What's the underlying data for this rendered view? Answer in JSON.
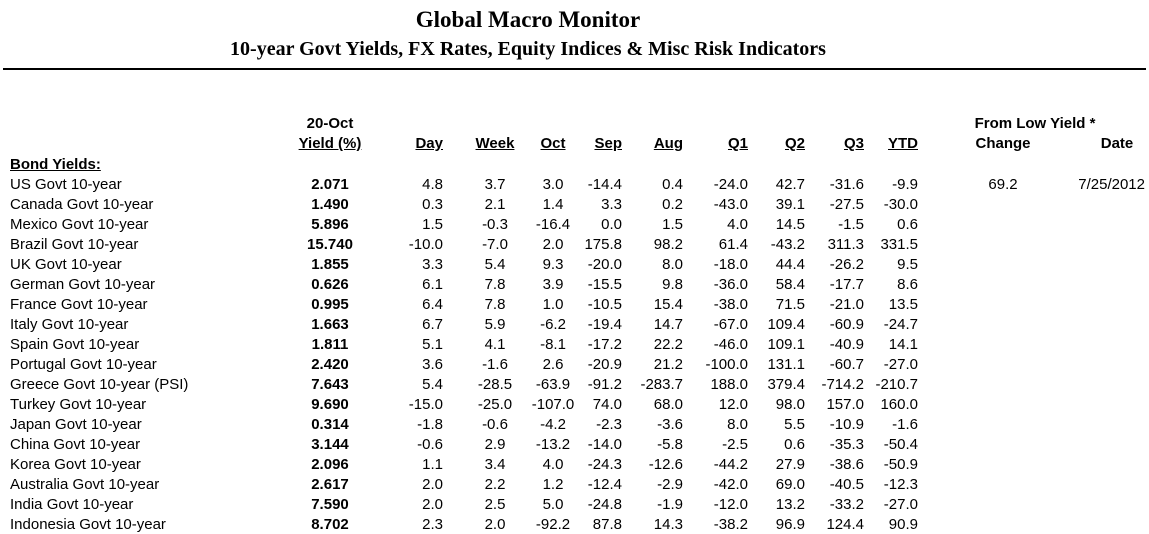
{
  "title": "Global Macro Monitor",
  "subtitle": "10-year Govt Yields, FX Rates, Equity Indices & Misc Risk Indicators",
  "table": {
    "period_label": "20-Oct",
    "from_low_label": "From Low Yield *",
    "change_label": "Change",
    "date_label": "Date",
    "section_label": "Bond Yields:",
    "columns": [
      "Yield (%)",
      "Day",
      "Week",
      "Oct",
      "Sep",
      "Aug",
      "Q1",
      "Q2",
      "Q3",
      "YTD"
    ],
    "rows": [
      {
        "name": "US Govt 10-year",
        "yield": "2.071",
        "values": [
          "4.8",
          "3.7",
          "3.0",
          "-14.4",
          "0.4",
          "-24.0",
          "42.7",
          "-31.6",
          "-9.9"
        ],
        "change": "69.2",
        "date": "7/25/2012"
      },
      {
        "name": "Canada Govt 10-year",
        "yield": "1.490",
        "values": [
          "0.3",
          "2.1",
          "1.4",
          "3.3",
          "0.2",
          "-43.0",
          "39.1",
          "-27.5",
          "-30.0"
        ],
        "change": "",
        "date": ""
      },
      {
        "name": "Mexico Govt 10-year",
        "yield": "5.896",
        "values": [
          "1.5",
          "-0.3",
          "-16.4",
          "0.0",
          "1.5",
          "4.0",
          "14.5",
          "-1.5",
          "0.6"
        ],
        "change": "",
        "date": ""
      },
      {
        "name": "Brazil Govt 10-year",
        "yield": "15.740",
        "values": [
          "-10.0",
          "-7.0",
          "2.0",
          "175.8",
          "98.2",
          "61.4",
          "-43.2",
          "311.3",
          "331.5"
        ],
        "change": "",
        "date": ""
      },
      {
        "name": "UK Govt 10-year",
        "yield": "1.855",
        "values": [
          "3.3",
          "5.4",
          "9.3",
          "-20.0",
          "8.0",
          "-18.0",
          "44.4",
          "-26.2",
          "9.5"
        ],
        "change": "",
        "date": ""
      },
      {
        "name": "German Govt 10-year",
        "yield": "0.626",
        "values": [
          "6.1",
          "7.8",
          "3.9",
          "-15.5",
          "9.8",
          "-36.0",
          "58.4",
          "-17.7",
          "8.6"
        ],
        "change": "",
        "date": ""
      },
      {
        "name": "France Govt 10-year",
        "yield": "0.995",
        "values": [
          "6.4",
          "7.8",
          "1.0",
          "-10.5",
          "15.4",
          "-38.0",
          "71.5",
          "-21.0",
          "13.5"
        ],
        "change": "",
        "date": ""
      },
      {
        "name": "Italy Govt 10-year",
        "yield": "1.663",
        "values": [
          "6.7",
          "5.9",
          "-6.2",
          "-19.4",
          "14.7",
          "-67.0",
          "109.4",
          "-60.9",
          "-24.7"
        ],
        "change": "",
        "date": ""
      },
      {
        "name": "Spain Govt 10-year",
        "yield": "1.811",
        "values": [
          "5.1",
          "4.1",
          "-8.1",
          "-17.2",
          "22.2",
          "-46.0",
          "109.1",
          "-40.9",
          "14.1"
        ],
        "change": "",
        "date": ""
      },
      {
        "name": "Portugal Govt 10-year",
        "yield": "2.420",
        "values": [
          "3.6",
          "-1.6",
          "2.6",
          "-20.9",
          "21.2",
          "-100.0",
          "131.1",
          "-60.7",
          "-27.0"
        ],
        "change": "",
        "date": ""
      },
      {
        "name": "Greece Govt 10-year (PSI)",
        "yield": "7.643",
        "values": [
          "5.4",
          "-28.5",
          "-63.9",
          "-91.2",
          "-283.7",
          "188.0",
          "379.4",
          "-714.2",
          "-210.7"
        ],
        "change": "",
        "date": ""
      },
      {
        "name": "Turkey Govt 10-year",
        "yield": "9.690",
        "values": [
          "-15.0",
          "-25.0",
          "-107.0",
          "74.0",
          "68.0",
          "12.0",
          "98.0",
          "157.0",
          "160.0"
        ],
        "change": "",
        "date": ""
      },
      {
        "name": "Japan Govt 10-year",
        "yield": "0.314",
        "values": [
          "-1.8",
          "-0.6",
          "-4.2",
          "-2.3",
          "-3.6",
          "8.0",
          "5.5",
          "-10.9",
          "-1.6"
        ],
        "change": "",
        "date": ""
      },
      {
        "name": "China Govt 10-year",
        "yield": "3.144",
        "values": [
          "-0.6",
          "2.9",
          "-13.2",
          "-14.0",
          "-5.8",
          "-2.5",
          "0.6",
          "-35.3",
          "-50.4"
        ],
        "change": "",
        "date": ""
      },
      {
        "name": "Korea Govt 10-year",
        "yield": "2.096",
        "values": [
          "1.1",
          "3.4",
          "4.0",
          "-24.3",
          "-12.6",
          "-44.2",
          "27.9",
          "-38.6",
          "-50.9"
        ],
        "change": "",
        "date": ""
      },
      {
        "name": "Australia Govt 10-year",
        "yield": "2.617",
        "values": [
          "2.0",
          "2.2",
          "1.2",
          "-12.4",
          "-2.9",
          "-42.0",
          "69.0",
          "-40.5",
          "-12.3"
        ],
        "change": "",
        "date": ""
      },
      {
        "name": "India Govt 10-year",
        "yield": "7.590",
        "values": [
          "2.0",
          "2.5",
          "5.0",
          "-24.8",
          "-1.9",
          "-12.0",
          "13.2",
          "-33.2",
          "-27.0"
        ],
        "change": "",
        "date": ""
      },
      {
        "name": "Indonesia Govt 10-year",
        "yield": "8.702",
        "values": [
          "2.3",
          "2.0",
          "-92.2",
          "87.8",
          "14.3",
          "-38.2",
          "96.9",
          "124.4",
          "90.9"
        ],
        "change": "",
        "date": ""
      }
    ]
  }
}
